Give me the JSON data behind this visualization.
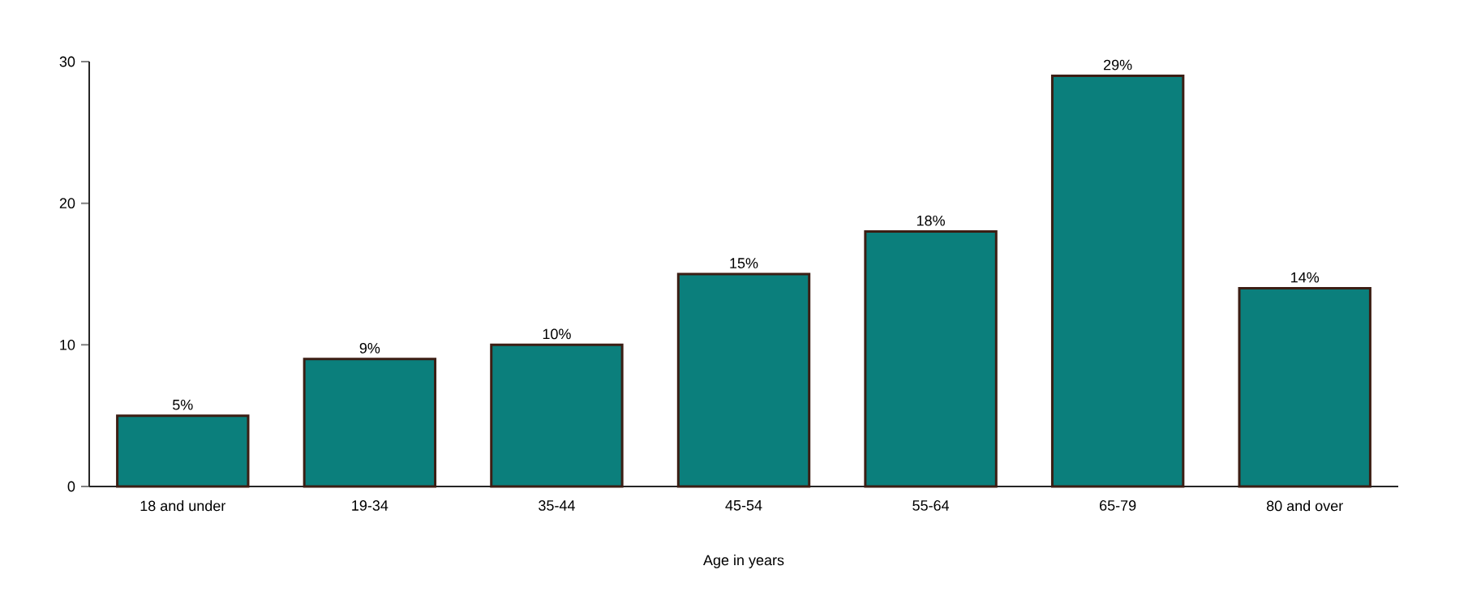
{
  "chart_data": {
    "type": "bar",
    "xlabel": "Age in years",
    "categories": [
      "18 and under",
      "19-34",
      "35-44",
      "45-54",
      "55-64",
      "65-79",
      "80 and over"
    ],
    "values": [
      5,
      9,
      10,
      15,
      18,
      29,
      14
    ],
    "value_labels": [
      "5%",
      "9%",
      "10%",
      "15%",
      "18%",
      "29%",
      "14%"
    ],
    "color": "#0b7f7c",
    "ylim": [
      0,
      30
    ],
    "yticks": [
      0,
      10,
      20,
      30
    ]
  }
}
